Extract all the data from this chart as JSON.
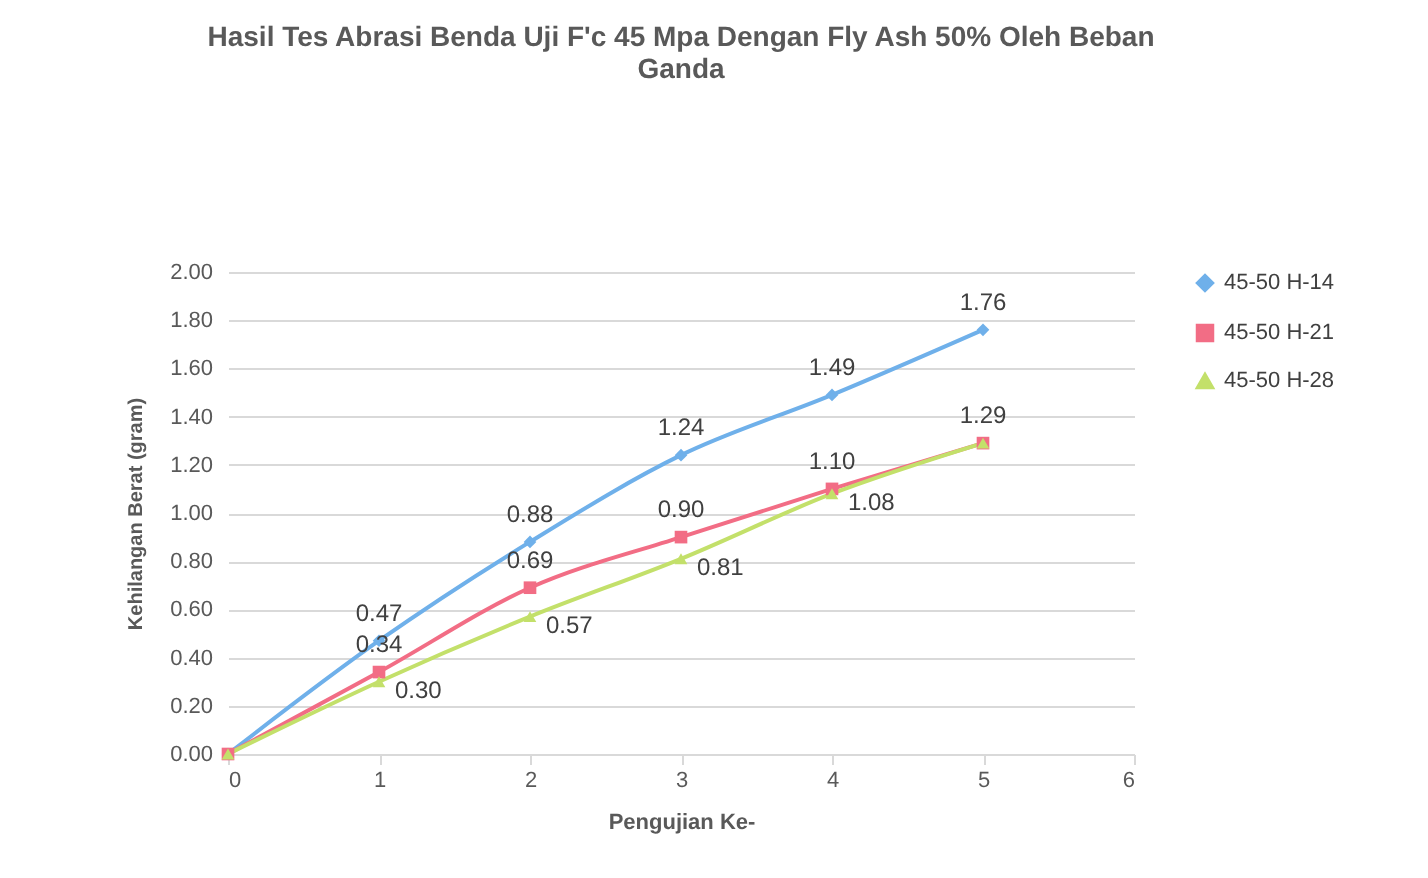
{
  "chart_data": {
    "type": "line",
    "title": "Hasil Tes Abrasi Benda Uji F'c 45 Mpa Dengan Fly Ash  50% Oleh Beban Ganda",
    "xlabel": "Pengujian Ke-",
    "ylabel": "Kehilangan Berat (gram)",
    "x": [
      0,
      1,
      2,
      3,
      4,
      5
    ],
    "series": [
      {
        "name": "45-50 H-14",
        "color": "#6fb0ea",
        "marker": "diamond",
        "values": [
          0,
          0.47,
          0.88,
          1.24,
          1.49,
          1.76
        ],
        "value_labels": [
          null,
          "0.47",
          "0.88",
          "1.24",
          "1.49",
          "1.76"
        ]
      },
      {
        "name": "45-50 H-21",
        "color": "#f26d85",
        "marker": "square",
        "values": [
          0,
          0.34,
          0.69,
          0.9,
          1.1,
          1.29
        ],
        "value_labels": [
          null,
          "0.34",
          "0.69",
          "0.90",
          "1.10",
          "1.29"
        ]
      },
      {
        "name": "45-50 H-28",
        "color": "#c3e06a",
        "marker": "triangle",
        "values": [
          0,
          0.3,
          0.57,
          0.81,
          1.08,
          1.29
        ],
        "value_labels": [
          null,
          "0.30",
          "0.57",
          "0.81",
          "1.08",
          null
        ]
      }
    ],
    "xlim": [
      0,
      6
    ],
    "xticks": [
      0,
      1,
      2,
      3,
      4,
      5,
      6
    ],
    "ylim": [
      0,
      2
    ],
    "yticks": [
      {
        "value": 0,
        "label": "0.00"
      },
      {
        "value": 0.2,
        "label": "0.20"
      },
      {
        "value": 0.4,
        "label": "0.40"
      },
      {
        "value": 0.6,
        "label": "0.60"
      },
      {
        "value": 0.8,
        "label": "0.80"
      },
      {
        "value": 1,
        "label": "1.00"
      },
      {
        "value": 1.2,
        "label": "1.20"
      },
      {
        "value": 1.4,
        "label": "1.40"
      },
      {
        "value": 1.6,
        "label": "1.60"
      },
      {
        "value": 1.8,
        "label": "1.80"
      },
      {
        "value": 2,
        "label": "2.00"
      }
    ],
    "grid": "y",
    "legend": "right"
  }
}
